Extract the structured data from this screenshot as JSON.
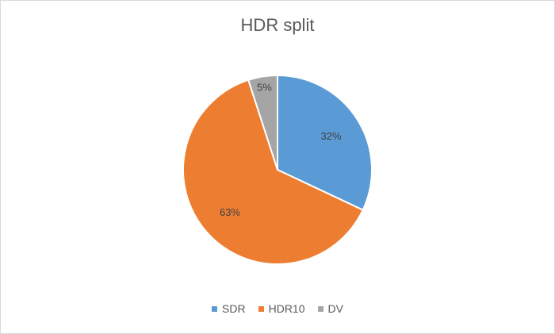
{
  "chart_data": {
    "type": "pie",
    "title": "HDR split",
    "categories": [
      "SDR",
      "HDR10",
      "DV"
    ],
    "values": [
      32,
      63,
      5
    ],
    "data_labels": [
      "32%",
      "63%",
      "5%"
    ],
    "colors": [
      "#5b9bd5",
      "#ed7d31",
      "#a5a5a5"
    ],
    "legend_position": "bottom",
    "start_angle": "12 o'clock, clockwise"
  }
}
